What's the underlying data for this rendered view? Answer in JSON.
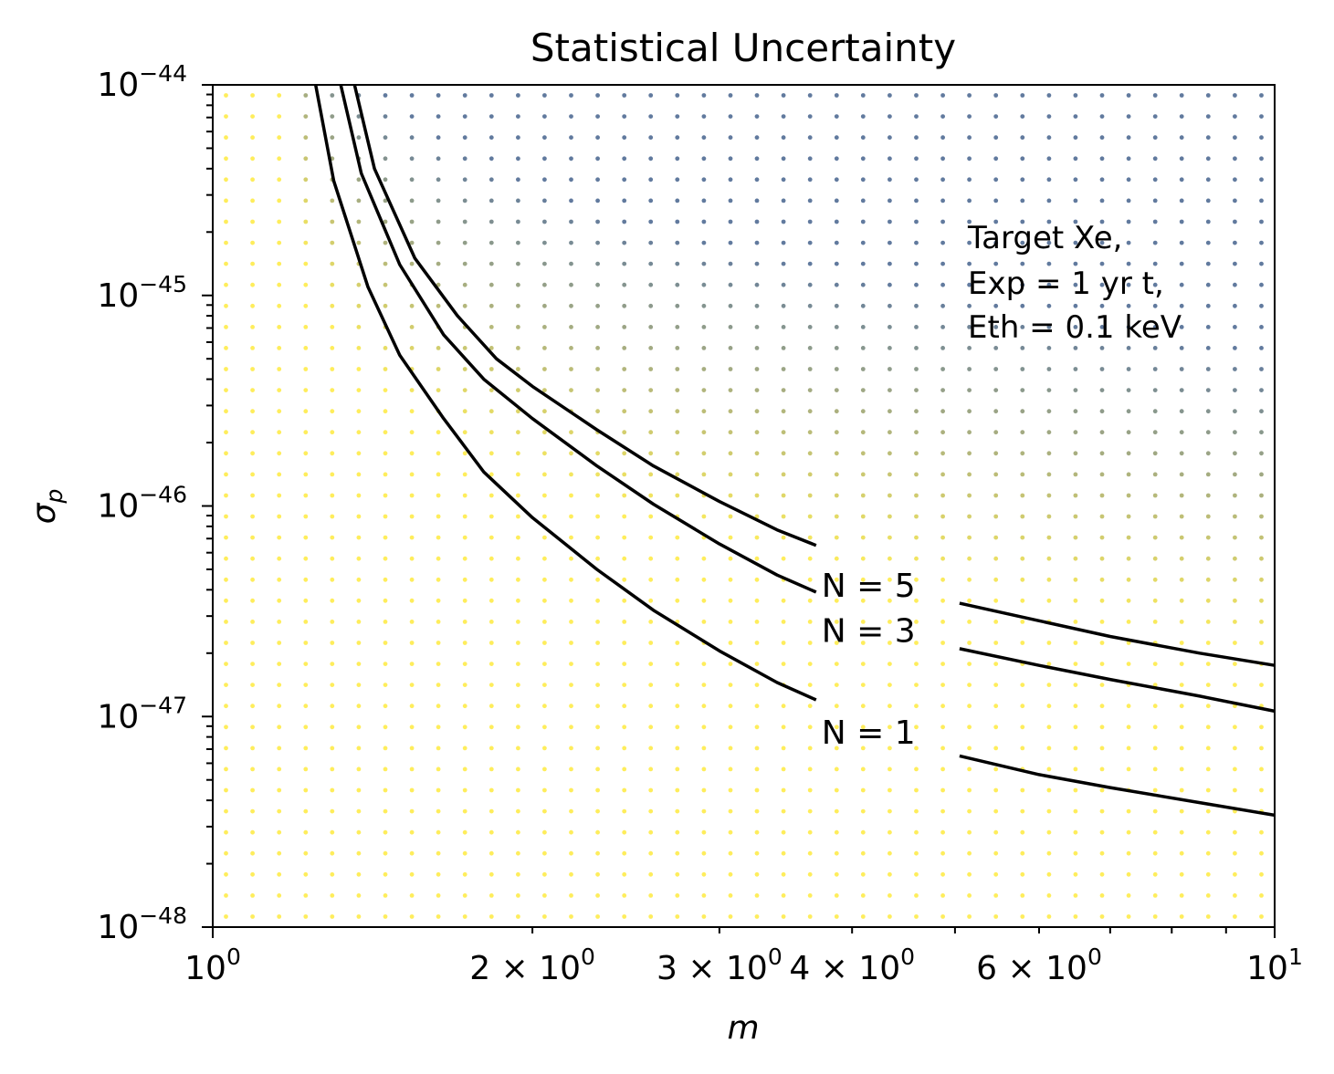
{
  "chart_data": {
    "type": "scatter",
    "title": "Statistical Uncertainty",
    "xlabel": "m",
    "ylabel_symbol": "σ",
    "ylabel_subscript": "p",
    "xscale": "log",
    "yscale": "log",
    "xlim": [
      1,
      10
    ],
    "ylim": [
      1e-48,
      1e-44
    ],
    "grid": false,
    "x_ticks": [
      {
        "value": 1,
        "mantissa": "",
        "base": "10",
        "exp": "0"
      },
      {
        "value": 2,
        "mantissa": "2 × ",
        "base": "10",
        "exp": "0"
      },
      {
        "value": 3,
        "mantissa": "3 × ",
        "base": "10",
        "exp": "0"
      },
      {
        "value": 4,
        "mantissa": "4 × ",
        "base": "10",
        "exp": "0"
      },
      {
        "value": 6,
        "mantissa": "6 × ",
        "base": "10",
        "exp": "0"
      },
      {
        "value": 10,
        "mantissa": "",
        "base": "10",
        "exp": "1"
      }
    ],
    "y_ticks": [
      {
        "value": 1e-44,
        "base": "10",
        "exp": "−44"
      },
      {
        "value": 1e-45,
        "base": "10",
        "exp": "−45"
      },
      {
        "value": 1e-46,
        "base": "10",
        "exp": "−46"
      },
      {
        "value": 1e-47,
        "base": "10",
        "exp": "−47"
      },
      {
        "value": 1e-48,
        "base": "10",
        "exp": "−48"
      }
    ],
    "annotation": [
      "Target Xe,",
      "Exp = 1 yr t,",
      "Eth = 0.1 keV"
    ],
    "scatter_grid": {
      "nx": 40,
      "ny": 40,
      "colormap": [
        "#fde725",
        "#2c4d7d"
      ]
    },
    "contours": [
      {
        "label": "N = 1",
        "label_x": 4.2,
        "label_y": 8.2e-48,
        "label_gap": [
          3.7,
          5.05
        ],
        "points": [
          [
            1.25,
            1e-44
          ],
          [
            1.3,
            3.5e-45
          ],
          [
            1.4,
            1.1e-45
          ],
          [
            1.5,
            5.2e-46
          ],
          [
            1.65,
            2.6e-46
          ],
          [
            1.8,
            1.45e-46
          ],
          [
            2.0,
            8.8e-47
          ],
          [
            2.3,
            5e-47
          ],
          [
            2.6,
            3.2e-47
          ],
          [
            3.0,
            2.05e-47
          ],
          [
            3.4,
            1.45e-47
          ],
          [
            3.7,
            1.2e-47
          ],
          [
            5.05,
            6.5e-48
          ],
          [
            6.0,
            5.3e-48
          ],
          [
            7.0,
            4.6e-48
          ],
          [
            8.5,
            3.9e-48
          ],
          [
            10,
            3.4e-48
          ]
        ]
      },
      {
        "label": "N = 3",
        "label_x": 4.2,
        "label_y": 2.5e-47,
        "label_gap": [
          3.7,
          5.05
        ],
        "points": [
          [
            1.32,
            1e-44
          ],
          [
            1.38,
            3.8e-45
          ],
          [
            1.5,
            1.4e-45
          ],
          [
            1.65,
            6.5e-46
          ],
          [
            1.8,
            4e-46
          ],
          [
            2.0,
            2.6e-46
          ],
          [
            2.3,
            1.55e-46
          ],
          [
            2.6,
            1.02e-46
          ],
          [
            3.0,
            6.6e-47
          ],
          [
            3.4,
            4.7e-47
          ],
          [
            3.7,
            3.9e-47
          ],
          [
            5.05,
            2.1e-47
          ],
          [
            6.0,
            1.75e-47
          ],
          [
            7.0,
            1.5e-47
          ],
          [
            8.5,
            1.25e-47
          ],
          [
            10,
            1.06e-47
          ]
        ]
      },
      {
        "label": "N = 5",
        "label_x": 4.2,
        "label_y": 4.1e-47,
        "label_gap": [
          3.7,
          5.05
        ],
        "points": [
          [
            1.36,
            1e-44
          ],
          [
            1.42,
            4e-45
          ],
          [
            1.55,
            1.5e-45
          ],
          [
            1.7,
            8e-46
          ],
          [
            1.85,
            5e-46
          ],
          [
            2.0,
            3.7e-46
          ],
          [
            2.3,
            2.3e-46
          ],
          [
            2.6,
            1.55e-46
          ],
          [
            3.0,
            1.05e-46
          ],
          [
            3.4,
            7.7e-47
          ],
          [
            3.7,
            6.5e-47
          ],
          [
            5.05,
            3.45e-47
          ],
          [
            6.0,
            2.85e-47
          ],
          [
            7.0,
            2.4e-47
          ],
          [
            8.5,
            2e-47
          ],
          [
            10,
            1.75e-47
          ]
        ]
      }
    ]
  }
}
